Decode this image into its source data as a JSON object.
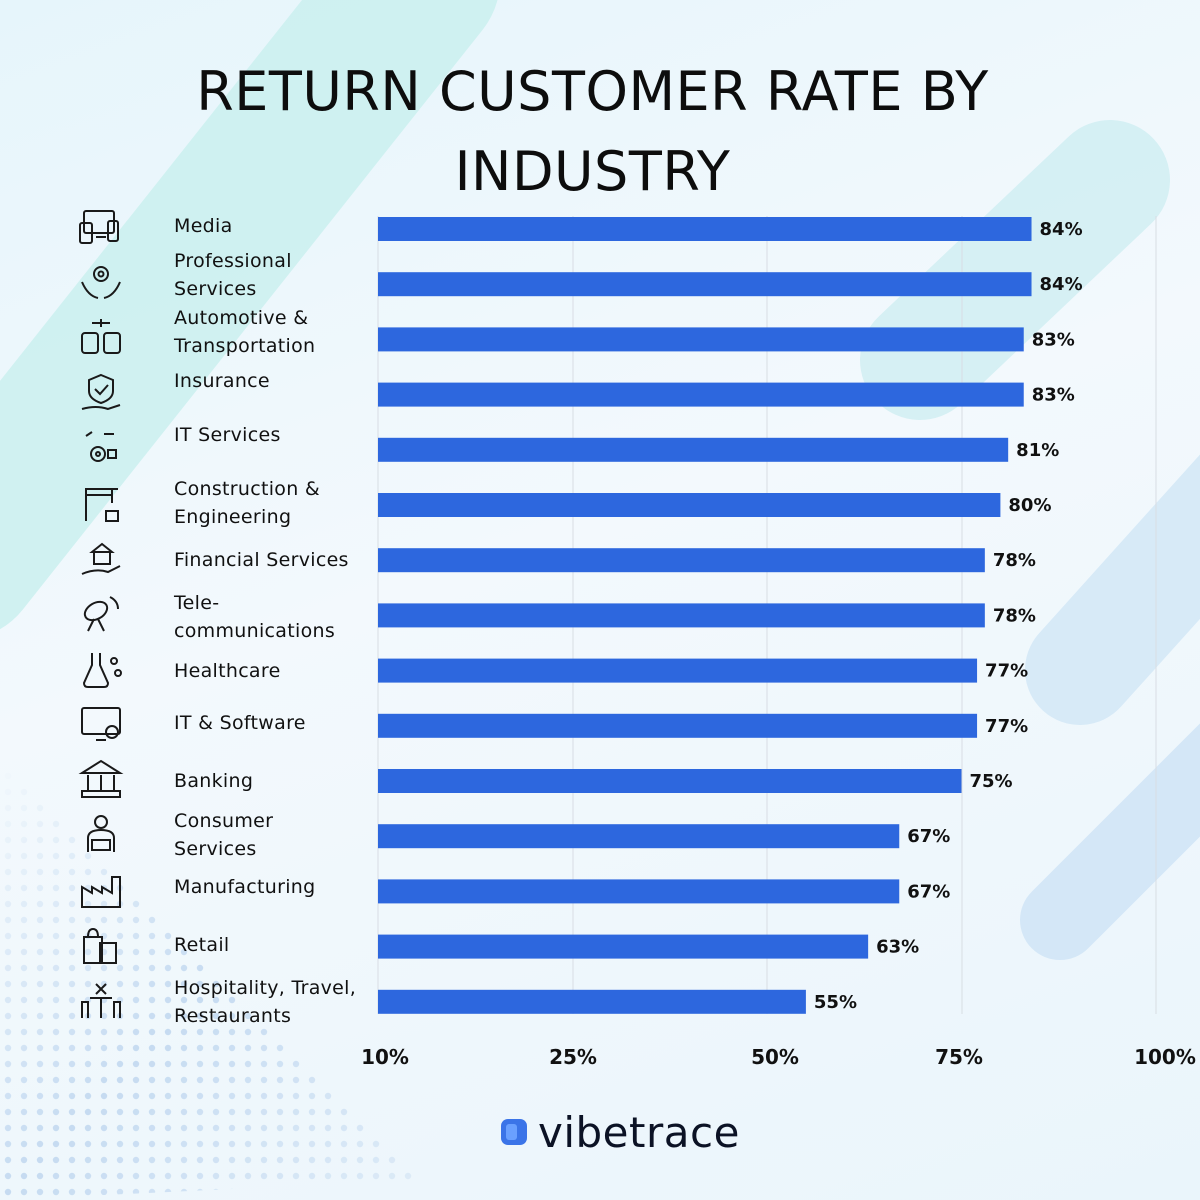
{
  "title_lines": [
    "RETURN CUSTOMER RATE BY",
    "INDUSTRY"
  ],
  "brand": {
    "name": "vibetrace",
    "color": "#3b74e8"
  },
  "colors": {
    "bar": "#2d67de",
    "grid": "#d8dde3",
    "text": "#111111"
  },
  "icons": [
    "devices-icon",
    "hands-gear-icon",
    "vehicles-icon",
    "shield-hand-icon",
    "it-services-icon",
    "crane-icon",
    "hand-bank-icon",
    "satellite-dish-icon",
    "flask-molecule-icon",
    "monitor-tools-icon",
    "bank-building-icon",
    "shopper-basket-icon",
    "factory-icon",
    "shopping-bags-icon",
    "table-chairs-icon"
  ],
  "chart_data": {
    "type": "bar",
    "orientation": "horizontal",
    "title": "RETURN CUSTOMER RATE BY INDUSTRY",
    "categories": [
      "Media",
      "Professional Services",
      "Automotive & Transportation",
      "Insurance",
      "IT Services",
      "Construction & Engineering",
      "Financial Services",
      "Tele-communications",
      "Healthcare",
      "IT & Software",
      "Banking",
      "Consumer Services",
      "Manufacturing",
      "Retail",
      "Hospitality, Travel, Restaurants"
    ],
    "category_lines": [
      [
        "Media"
      ],
      [
        "Professional",
        "Services"
      ],
      [
        "Automotive &",
        "Transportation"
      ],
      [
        "Insurance"
      ],
      [
        "IT Services"
      ],
      [
        "Construction &",
        "Engineering"
      ],
      [
        "Financial Services"
      ],
      [
        "Tele-",
        "communications"
      ],
      [
        "Healthcare"
      ],
      [
        "IT & Software"
      ],
      [
        "Banking"
      ],
      [
        "Consumer",
        "Services"
      ],
      [
        "Manufacturing"
      ],
      [
        "Retail"
      ],
      [
        "Hospitality, Travel,",
        "Restaurants"
      ]
    ],
    "values": [
      84,
      84,
      83,
      83,
      81,
      80,
      78,
      78,
      77,
      77,
      75,
      67,
      67,
      63,
      55
    ],
    "value_labels": [
      "84%",
      "84%",
      "83%",
      "83%",
      "81%",
      "80%",
      "78%",
      "78%",
      "77%",
      "77%",
      "75%",
      "67%",
      "67%",
      "63%",
      "55%"
    ],
    "x_ticks": [
      "10%",
      "25%",
      "50%",
      "75%",
      "100%"
    ],
    "xlim": [
      0,
      100
    ],
    "grid": true,
    "legend": "none"
  }
}
